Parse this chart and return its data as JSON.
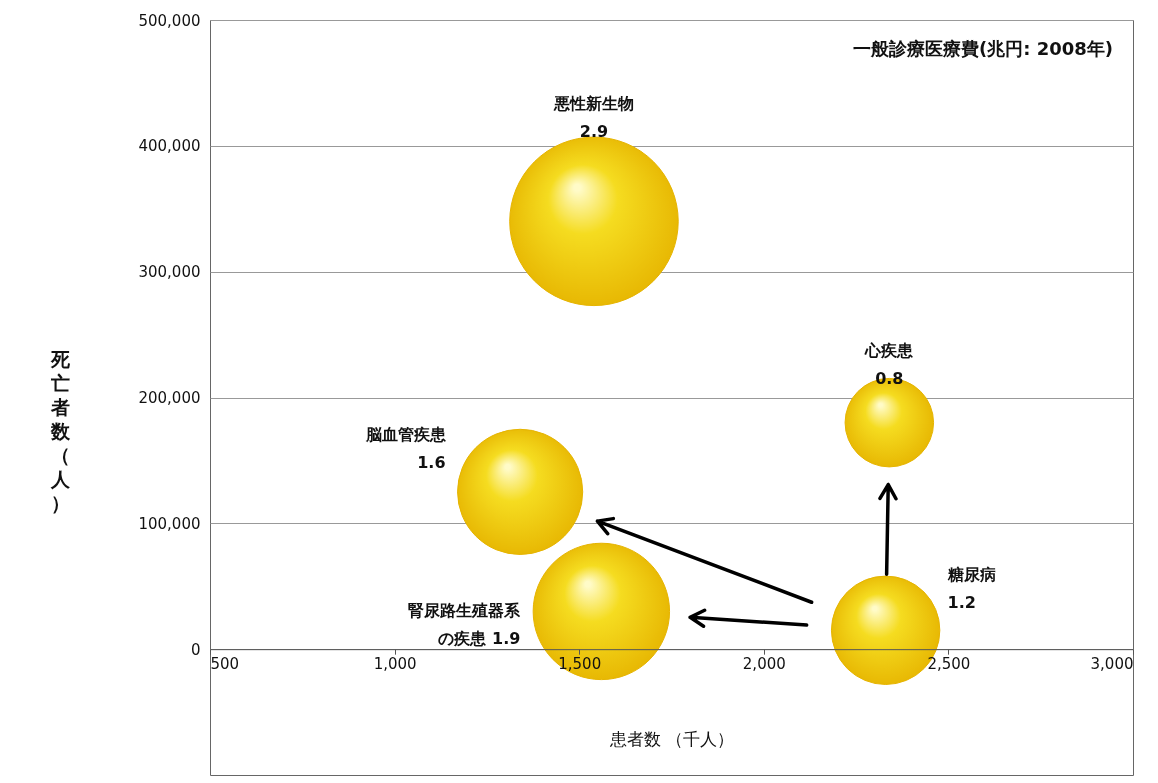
{
  "chart_data": {
    "type": "bubble",
    "xlabel": "患者数 （千人）",
    "ylabel": "死亡者数（人）",
    "annotations": [
      "一般診療医療費(兆円: 2008年)"
    ],
    "xlim": [
      500,
      3000
    ],
    "xticks": [
      {
        "value": 500,
        "label": "500"
      },
      {
        "value": 1000,
        "label": "1,000"
      },
      {
        "value": 1500,
        "label": "1,500"
      },
      {
        "value": 2000,
        "label": "2,000"
      },
      {
        "value": 2500,
        "label": "2,500"
      },
      {
        "value": 3000,
        "label": "3,000"
      }
    ],
    "ylim": [
      -100000,
      500000
    ],
    "yticks": [
      {
        "value": 0,
        "label": "0"
      },
      {
        "value": 100000,
        "label": "100,000"
      },
      {
        "value": 200000,
        "label": "200,000"
      },
      {
        "value": 300000,
        "label": "300,000"
      },
      {
        "value": 400000,
        "label": "400,000"
      },
      {
        "value": 500000,
        "label": "500,000"
      }
    ],
    "grid": "y",
    "series": [
      {
        "name": "悪性新生物",
        "color": "#e6b400",
        "x": [
          1540
        ],
        "values": [
          340000
        ],
        "sizes": [
          2.9
        ],
        "value_labels": [
          "2.9"
        ]
      },
      {
        "name": "脳血管疾患",
        "color": "#e6b400",
        "x": [
          1340
        ],
        "values": [
          125000
        ],
        "sizes": [
          1.6
        ],
        "value_labels": [
          "1.6"
        ]
      },
      {
        "name": "腎尿路生殖器系の疾患",
        "color": "#e6b400",
        "x": [
          1560
        ],
        "values": [
          30000
        ],
        "sizes": [
          1.9
        ],
        "value_labels": [
          "1.9"
        ]
      },
      {
        "name": "心疾患",
        "color": "#e6b400",
        "x": [
          2340
        ],
        "values": [
          180000
        ],
        "sizes": [
          0.8
        ],
        "value_labels": [
          "0.8"
        ]
      },
      {
        "name": "糖尿病",
        "color": "#e6b400",
        "x": [
          2330
        ],
        "values": [
          15000
        ],
        "sizes": [
          1.2
        ],
        "value_labels": [
          "1.2"
        ]
      }
    ]
  }
}
